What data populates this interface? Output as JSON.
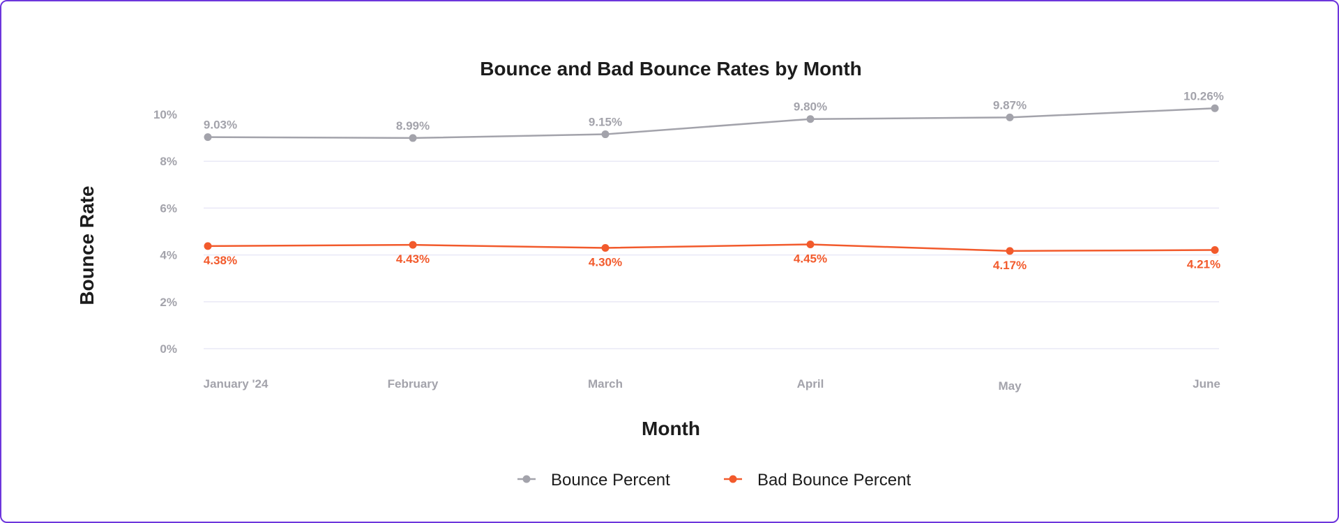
{
  "chart_data": {
    "type": "line",
    "title": "Bounce and Bad Bounce Rates by Month",
    "xlabel": "Month",
    "ylabel": "Bounce Rate",
    "ylim": [
      0,
      10
    ],
    "y_ticks": [
      "0%",
      "2%",
      "4%",
      "6%",
      "8%",
      "10%"
    ],
    "y_tick_values": [
      0,
      2,
      4,
      6,
      8,
      10
    ],
    "grid": true,
    "legend_position": "bottom-center",
    "categories": [
      "January '24",
      "February",
      "March",
      "April",
      "May",
      "June"
    ],
    "series": [
      {
        "name": "Bounce Percent",
        "color": "#a3a3ab",
        "values": [
          9.03,
          8.99,
          9.15,
          9.8,
          9.87,
          10.26
        ],
        "labels": [
          "9.03%",
          "8.99%",
          "9.15%",
          "9.80%",
          "9.87%",
          "10.26%"
        ]
      },
      {
        "name": "Bad Bounce Percent",
        "color": "#f25a2c",
        "values": [
          4.38,
          4.43,
          4.3,
          4.45,
          4.17,
          4.21
        ],
        "labels": [
          "4.38%",
          "4.43%",
          "4.30%",
          "4.45%",
          "4.17%",
          "4.21%"
        ]
      }
    ]
  }
}
